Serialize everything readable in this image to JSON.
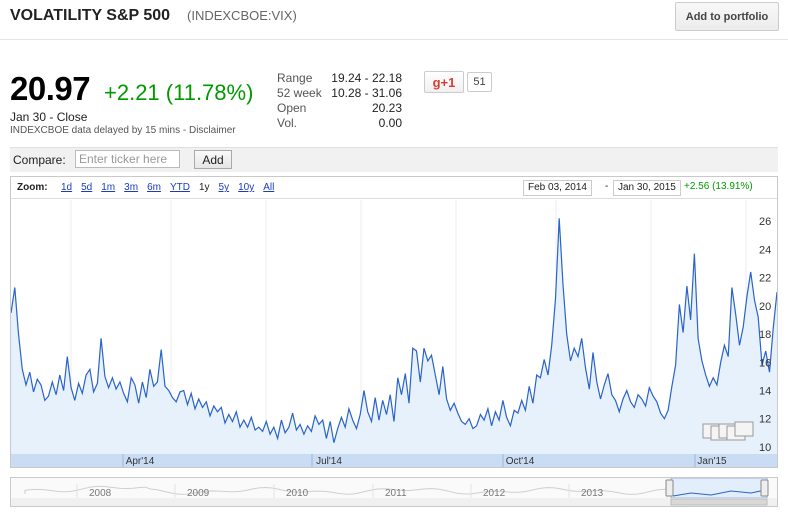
{
  "header": {
    "title": "VOLATILITY S&P 500",
    "ticker": "(INDEXCBOE:VIX)",
    "add_to_portfolio": "Add to portfolio"
  },
  "quote": {
    "price": "20.97",
    "change": "+2.21 (11.78%)",
    "close_label": "Jan 30 - Close",
    "disclaimer": "INDEXCBOE data delayed by 15 mins - Disclaimer"
  },
  "stats": [
    {
      "label": "Range",
      "value": "19.24 - 22.18"
    },
    {
      "label": "52 week",
      "value": "10.28 - 31.06"
    },
    {
      "label": "Open",
      "value": "20.23"
    },
    {
      "label": "Vol.",
      "value": "0.00"
    }
  ],
  "social": {
    "gplus_label": "g+1",
    "gplus_count": "51"
  },
  "compare": {
    "label": "Compare:",
    "placeholder": "Enter ticker here",
    "add_label": "Add"
  },
  "zoom": {
    "label": "Zoom:",
    "options": [
      "1d",
      "5d",
      "1m",
      "3m",
      "6m",
      "YTD",
      "1y",
      "5y",
      "10y",
      "All"
    ],
    "active": "1y",
    "range_start": "Feb 03, 2014",
    "range_sep": "-",
    "range_end": "Jan 30, 2015",
    "range_change": "+2.56 (13.91%)"
  },
  "colors": {
    "line": "#2a63c9",
    "fill": "#e6f1fc",
    "positive": "#009a00"
  },
  "chart_data": {
    "type": "area",
    "x_labels": [
      "Apr'14",
      "Jul'14",
      "Oct'14",
      "Jan'15"
    ],
    "y_ticks": [
      10,
      12,
      14,
      16,
      18,
      20,
      22,
      24,
      26
    ],
    "ylim": [
      9.5,
      27.5
    ],
    "values": [
      19.5,
      21.3,
      18,
      15.5,
      14.4,
      15.3,
      13.9,
      14.8,
      14.4,
      13.3,
      13.6,
      14.6,
      13.7,
      15.1,
      14,
      16.4,
      14.2,
      13.3,
      14.5,
      13.8,
      15.1,
      15.5,
      13.9,
      14.5,
      17.7,
      15,
      14.2,
      14.9,
      14.1,
      14.6,
      13.8,
      13.2,
      14.9,
      14.4,
      13.1,
      14.6,
      13.5,
      15.5,
      14.3,
      14.6,
      16.9,
      14.3,
      14,
      13.5,
      13.2,
      13.9,
      14,
      13,
      13.8,
      12.7,
      13.4,
      12.8,
      13.2,
      12.2,
      12.9,
      12.5,
      12.8,
      11.7,
      12.3,
      11.8,
      12.5,
      11.4,
      11.9,
      11.4,
      12.1,
      11.2,
      11.4,
      11.1,
      11.8,
      10.9,
      11.4,
      10.6,
      11.9,
      11,
      11.4,
      12.4,
      11.2,
      11.6,
      10.9,
      11.5,
      11.1,
      12.2,
      11.6,
      11.9,
      10.6,
      11.8,
      10.3,
      11.3,
      12.1,
      11.4,
      12.7,
      11.9,
      11.3,
      12.3,
      14,
      12.5,
      11.8,
      13.5,
      11.9,
      13.3,
      12.3,
      13.7,
      11.8,
      14.9,
      13.7,
      15.2,
      13.1,
      17,
      16.8,
      14.6,
      17,
      16.1,
      16.5,
      15.1,
      13.7,
      15.7,
      13.4,
      12.6,
      13.1,
      12.4,
      11.8,
      11.6,
      12,
      11.3,
      11.5,
      12.3,
      11.9,
      12.7,
      11.5,
      12.5,
      11.9,
      13.3,
      12.1,
      11.5,
      12.6,
      12.4,
      13.3,
      12.6,
      14.3,
      13.1,
      15.1,
      14.9,
      16.2,
      15.1,
      17.2,
      20.5,
      26.2,
      21.5,
      18,
      16.1,
      17,
      16.4,
      17.7,
      15.6,
      14.1,
      16.7,
      14.6,
      13.4,
      14.4,
      15.2,
      13.7,
      13.3,
      12.5,
      13.4,
      14,
      13.2,
      12.8,
      13.7,
      13.4,
      12.9,
      14.2,
      13.6,
      13.2,
      12.4,
      12,
      12.6,
      14.3,
      15.8,
      20.1,
      18.1,
      21.4,
      19,
      23.7,
      17.7,
      16.1,
      15.1,
      14.3,
      14.9,
      14.4,
      16,
      17.2,
      16.4,
      21.3,
      19.4,
      17.2,
      18.5,
      20.7,
      22.4,
      20.4,
      19.2,
      15.8,
      16.8,
      15.3,
      18.4,
      20.97
    ]
  }
}
